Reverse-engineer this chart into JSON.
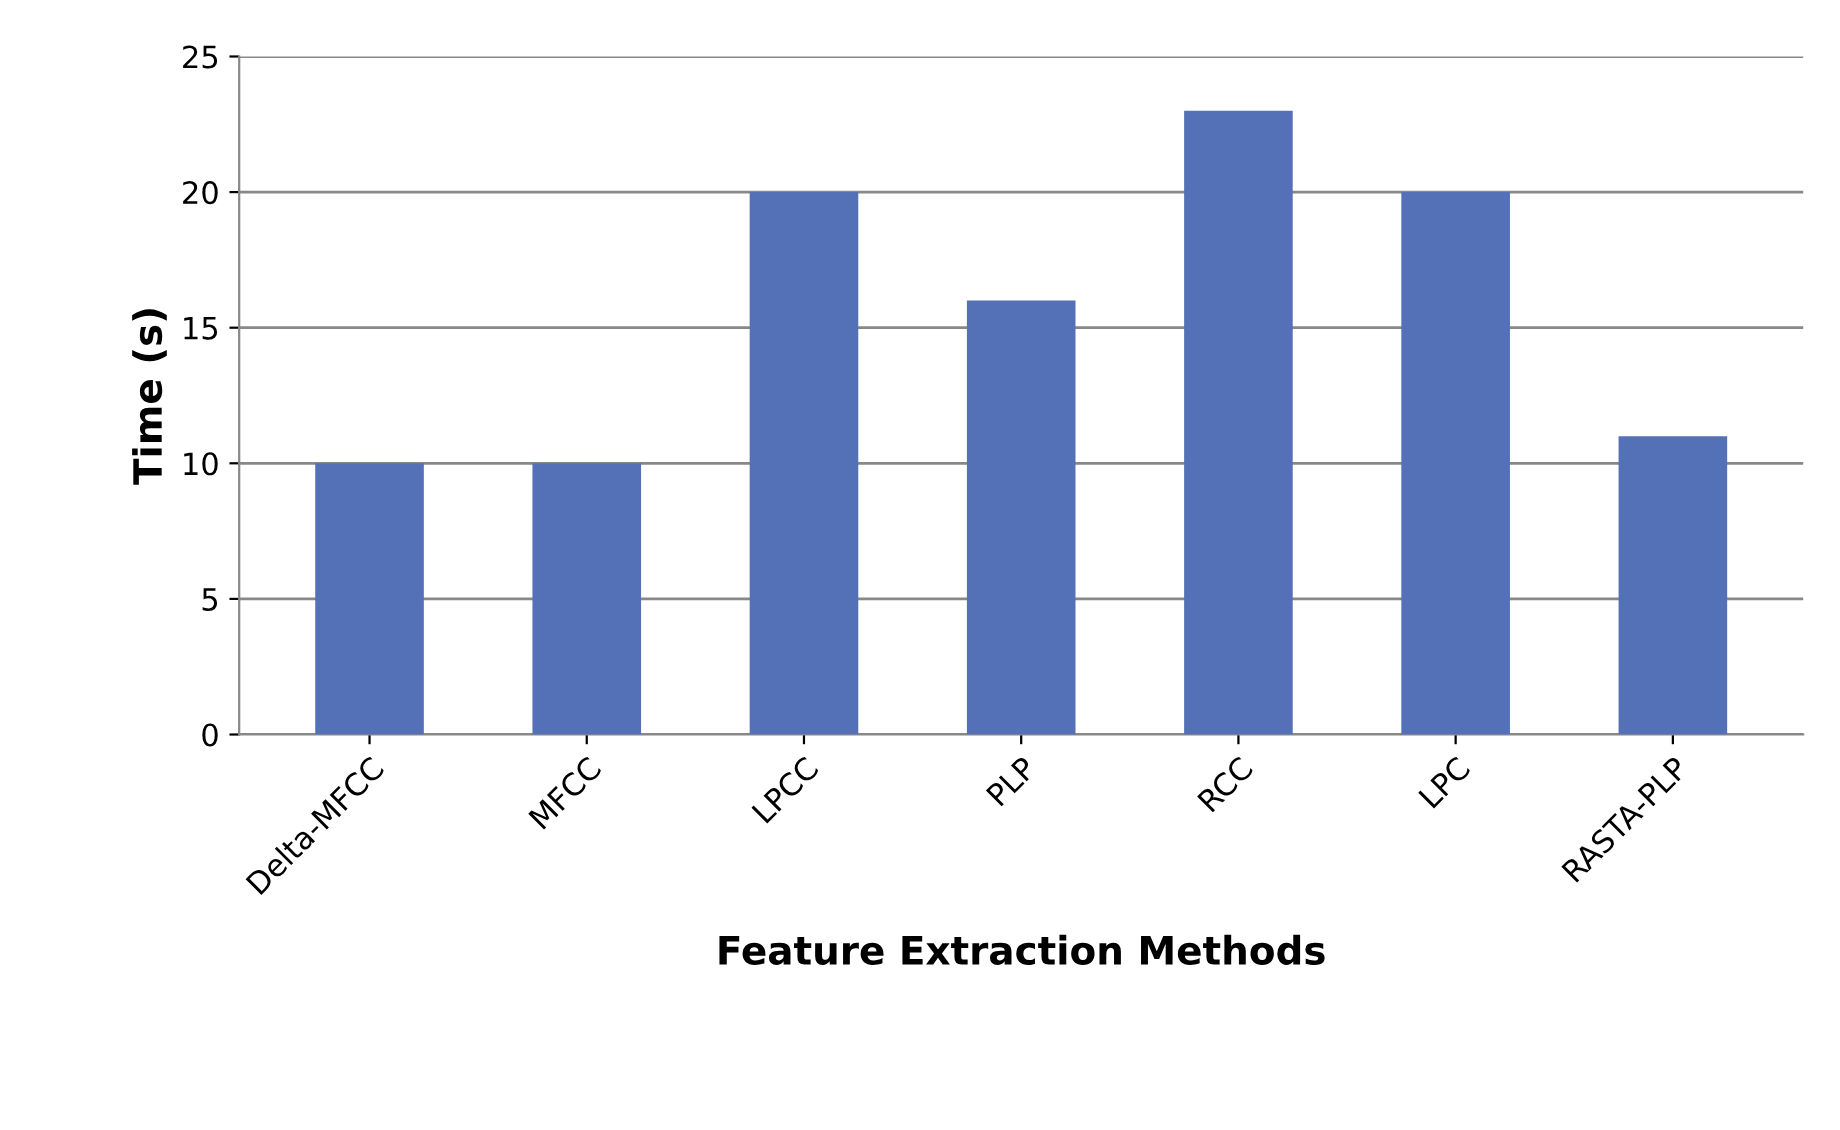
{
  "chart_data": {
    "type": "bar",
    "xlabel": "Feature Extraction Methods",
    "ylabel": "Time (s)",
    "categories": [
      "Delta-MFCC",
      "MFCC",
      "LPCC",
      "PLP",
      "RCC",
      "LPC",
      "RASTA-PLP"
    ],
    "values": [
      10,
      10,
      20,
      16,
      23,
      20,
      11
    ],
    "color": "#5470b7",
    "ylim": [
      0,
      25
    ],
    "yticks": [
      0,
      5,
      10,
      15,
      20,
      25
    ],
    "grid": "y",
    "legend": false
  }
}
